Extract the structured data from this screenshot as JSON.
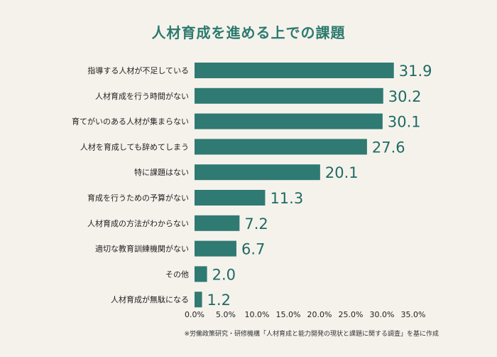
{
  "chart_data": {
    "type": "bar",
    "orientation": "horizontal",
    "title": "人材育成を進める上での課題",
    "categories": [
      "指導する人材が不足している",
      "人材育成を行う時間がない",
      "育てがいのある人材が集まらない",
      "人材を育成しても辞めてしまう",
      "特に課題はない",
      "育成を行うための予算がない",
      "人材育成の方法がわからない",
      "適切な教育訓練機関がない",
      "その他",
      "人材育成が無駄になる"
    ],
    "values": [
      31.9,
      30.2,
      30.1,
      27.6,
      20.1,
      11.3,
      7.2,
      6.7,
      2.0,
      1.2
    ],
    "value_labels": [
      "31.9",
      "30.2",
      "30.1",
      "27.6",
      "20.1",
      "11.3",
      "7.2",
      "6.7",
      "2.0",
      "1.2"
    ],
    "xlim": [
      0,
      35
    ],
    "xticks": [
      0,
      5,
      10,
      15,
      20,
      25,
      30,
      35
    ],
    "xtick_labels": [
      "0.0%",
      "5.0%",
      "10.0%",
      "15.0%",
      "20.0%",
      "25.0%",
      "30.0%",
      "35.0%"
    ],
    "bar_color": "#2f7a72",
    "value_color": "#1f6b63",
    "title_color": "#2c7a6e",
    "background_color": "#f5f2ec",
    "grid": false,
    "source_note": "※労働政策研究・研修機構「人材育成と能力開発の現状と課題に関する調査」を基に作成"
  }
}
